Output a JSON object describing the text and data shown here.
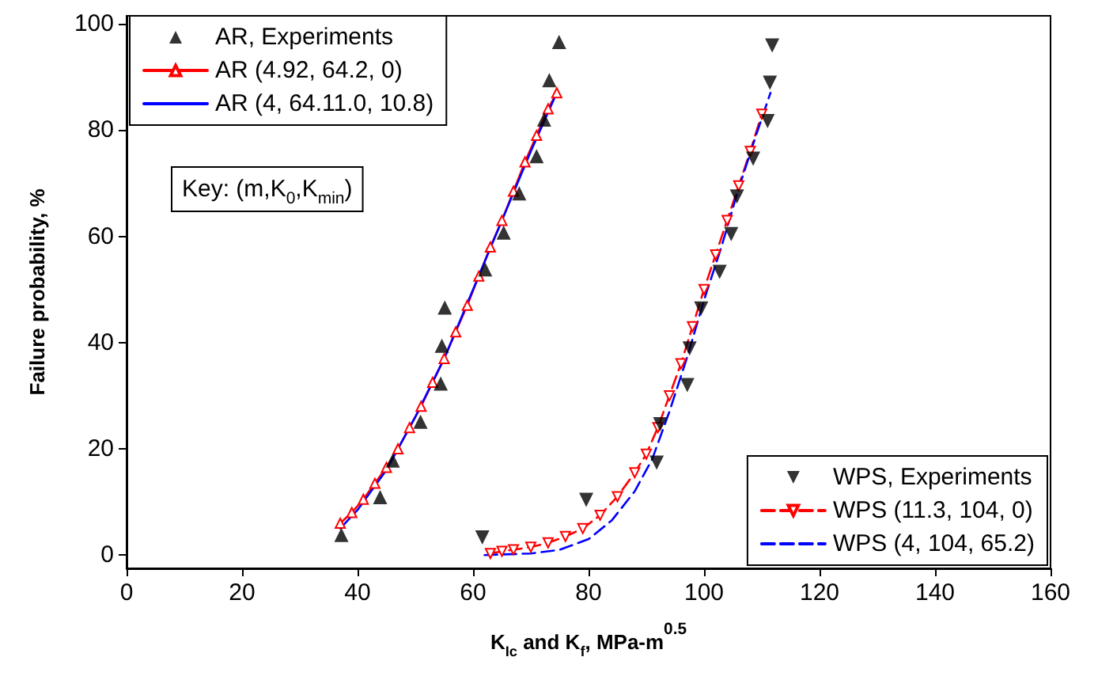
{
  "chart_data": {
    "type": "scatter",
    "xlabel": "K$_{Ic}$ and K$_{f}$, MPa-m$^{0.5}$",
    "ylabel": "Failure probability, %",
    "annotations": [
      "Key: (m,K$_{0}$,K$_{min}$)"
    ],
    "xlim": [
      0,
      160
    ],
    "xticks": [
      0,
      20,
      40,
      60,
      80,
      100,
      120,
      140,
      160
    ],
    "ylim": [
      -2.5,
      101.5
    ],
    "yticks": [
      0,
      20,
      40,
      60,
      80,
      100
    ],
    "grid": false,
    "legend": [
      "top left",
      "bottom right"
    ],
    "series": [
      {
        "name": "AR, Experiments",
        "marker": "triangle",
        "color": "#000000",
        "x": [
          37.2,
          43.9,
          46.1,
          50.9,
          54.4,
          54.6,
          55.1,
          62.1,
          65.3,
          68.0,
          71.0,
          72.3,
          73.2,
          74.9
        ],
        "values": [
          3.8,
          10.9,
          17.8,
          25.1,
          32.3,
          39.4,
          46.6,
          53.8,
          60.7,
          68.1,
          75.1,
          82.0,
          89.4,
          96.6
        ]
      },
      {
        "name": "AR (4.92, 64.2, 0)",
        "type": "line",
        "marker": "triangle",
        "line_style": "solid",
        "color": "#ff0000",
        "x": [
          37,
          39,
          41,
          43,
          45,
          47,
          49,
          51,
          53,
          55,
          57,
          59,
          61,
          63,
          65,
          67,
          69,
          71,
          73,
          74.5
        ],
        "values": [
          6,
          8,
          10.5,
          13.5,
          16.5,
          20,
          24,
          28,
          32.5,
          37,
          42,
          47,
          52.5,
          58,
          63,
          68.5,
          74,
          79,
          84,
          87
        ]
      },
      {
        "name": "AR (4, 64.11.0, 10.8)",
        "type": "line",
        "marker": "none",
        "line_style": "solid",
        "color": "#0000ff",
        "x": [
          37,
          40,
          45,
          50,
          55,
          60,
          65,
          70,
          74.5
        ],
        "values": [
          5,
          8.5,
          16,
          26,
          37,
          50,
          63,
          76,
          87
        ]
      },
      {
        "name": "WPS, Experiments",
        "marker": "triangle-down",
        "color": "#000000",
        "x": [
          61.6,
          79.6,
          91.8,
          92.4,
          97.1,
          97.5,
          99.5,
          102.7,
          104.7,
          105.7,
          108.5,
          111.0,
          111.4,
          111.8
        ],
        "values": [
          3.3,
          10.4,
          17.4,
          24.6,
          32.0,
          38.9,
          46.4,
          53.3,
          60.4,
          67.5,
          74.6,
          81.7,
          88.9,
          95.9
        ]
      },
      {
        "name": "WPS (11.3, 104, 0)",
        "type": "line",
        "marker": "triangle-down",
        "line_style": "dashed",
        "color": "#ff0000",
        "x": [
          63,
          65,
          67,
          70,
          73,
          76,
          79,
          82,
          85,
          88,
          90,
          92,
          94,
          96,
          98,
          100,
          102,
          104,
          106,
          108,
          110
        ],
        "values": [
          0.3,
          0.7,
          1,
          1.5,
          2.3,
          3.5,
          5,
          7.5,
          11,
          15.5,
          19,
          24,
          30,
          36,
          43,
          50,
          56.5,
          63,
          69.5,
          76,
          83
        ]
      },
      {
        "name": "WPS (4, 104, 65.2)",
        "type": "line",
        "marker": "none",
        "line_style": "dashed",
        "color": "#0000ff",
        "x": [
          62,
          70,
          75,
          80,
          84,
          88,
          91,
          94,
          97,
          100,
          103,
          106,
          109,
          111.5
        ],
        "values": [
          0,
          0.3,
          1,
          3,
          6.5,
          12,
          18,
          27,
          37,
          48,
          58,
          69,
          79,
          87
        ]
      }
    ]
  }
}
